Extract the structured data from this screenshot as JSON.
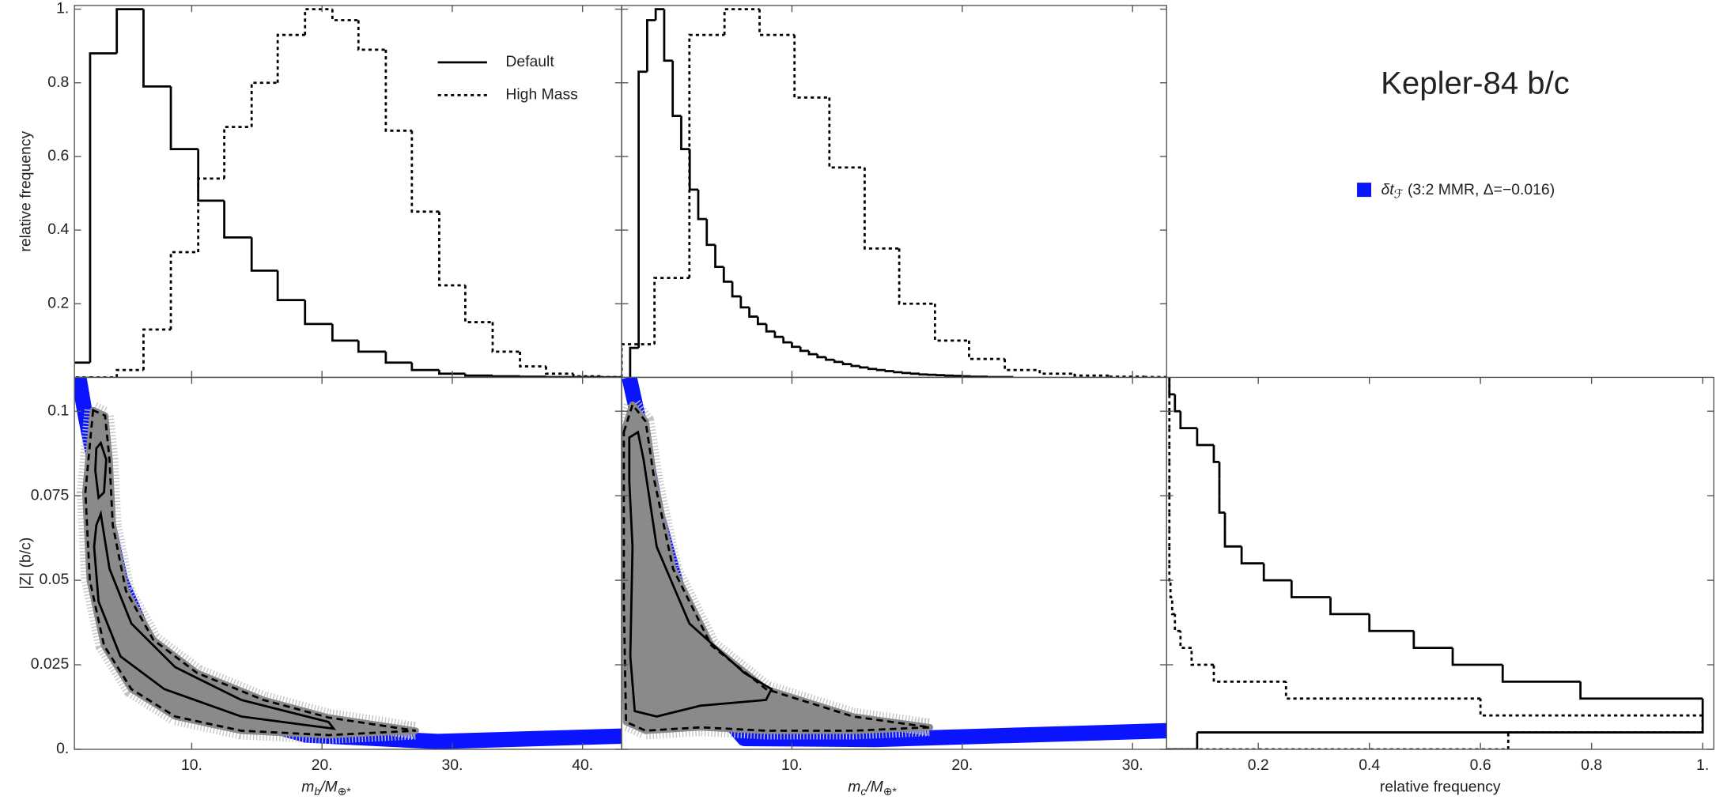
{
  "title": "Kepler-84 b/c",
  "chart_data": [
    {
      "type": "histogram",
      "orientation": "vertical",
      "xlim": [
        1,
        43
      ],
      "ylim": [
        0,
        1.01
      ],
      "yticks": [
        0.2,
        0.4,
        0.6,
        0.8,
        {
          "value": 1,
          "label": "1."
        }
      ],
      "y_label": "relative frequency",
      "legend": "upper right",
      "series": [
        {
          "name": "Default",
          "color": "#000000",
          "style": "solid",
          "bins": [
            0.1,
            2.2,
            4.25,
            6.3,
            8.4,
            10.5,
            12.5,
            14.6,
            16.6,
            18.7,
            20.8,
            22.8,
            24.9,
            26.9,
            29,
            31,
            33.1,
            35.2,
            37.2,
            39.3,
            41.4,
            43.4
          ],
          "values": [
            0.04,
            0.88,
            1.0,
            0.79,
            0.62,
            0.48,
            0.38,
            0.29,
            0.21,
            0.145,
            0.1,
            0.07,
            0.04,
            0.02,
            0.01,
            0.005,
            0.003,
            0.002,
            0.001,
            0.001,
            0.0005
          ]
        },
        {
          "name": "High Mass",
          "color": "#000000",
          "style": "dotted",
          "bins": [
            0.1,
            2.2,
            4.25,
            6.3,
            8.4,
            10.5,
            12.5,
            14.6,
            16.6,
            18.7,
            20.8,
            22.8,
            24.9,
            26.9,
            29,
            31,
            33.1,
            35.2,
            37.2,
            39.3,
            41.4,
            43.4
          ],
          "values": [
            0,
            0,
            0.02,
            0.13,
            0.34,
            0.54,
            0.68,
            0.8,
            0.93,
            1.0,
            0.97,
            0.89,
            0.67,
            0.45,
            0.25,
            0.15,
            0.07,
            0.03,
            0.01,
            0.003,
            0.001
          ]
        }
      ]
    },
    {
      "type": "histogram",
      "orientation": "vertical",
      "xlim": [
        0,
        32
      ],
      "ylim": [
        0,
        1.01
      ],
      "series": [
        {
          "color": "#000000",
          "style": "solid",
          "bins": [
            0.5,
            1,
            1.5,
            2,
            2.5,
            3,
            3.5,
            4,
            4.5,
            5,
            5.5,
            6,
            6.5,
            7,
            7.5,
            8,
            8.5,
            9,
            9.5,
            10,
            10.5,
            11,
            11.5,
            12,
            12.5,
            13,
            13.5,
            14,
            14.5,
            15,
            15.5,
            16,
            16.5,
            17,
            17.5,
            18,
            18.5,
            19,
            19.5,
            20,
            20.5,
            21,
            21.5,
            22,
            22.5,
            23
          ],
          "values": [
            0.08,
            0.83,
            0.97,
            1.0,
            0.86,
            0.71,
            0.62,
            0.51,
            0.43,
            0.36,
            0.3,
            0.26,
            0.22,
            0.19,
            0.165,
            0.145,
            0.125,
            0.11,
            0.095,
            0.083,
            0.072,
            0.063,
            0.055,
            0.048,
            0.042,
            0.036,
            0.031,
            0.027,
            0.023,
            0.02,
            0.017,
            0.014,
            0.012,
            0.01,
            0.008,
            0.007,
            0.006,
            0.005,
            0.004,
            0.003,
            0.002,
            0.002,
            0.001,
            0.001,
            0.001
          ]
        },
        {
          "color": "#000000",
          "style": "dotted",
          "bins": [
            0,
            1.93,
            3.98,
            6.04,
            8.1,
            10.15,
            12.2,
            14.27,
            16.3,
            18.4,
            20.4,
            22.5,
            24.55,
            26.6,
            28.7,
            30.7,
            32
          ],
          "values": [
            0.09,
            0.27,
            0.93,
            1.0,
            0.93,
            0.76,
            0.57,
            0.35,
            0.2,
            0.1,
            0.05,
            0.02,
            0.01,
            0.005,
            0.002,
            0.001
          ]
        }
      ]
    },
    {
      "type": "contour",
      "xlim": [
        1,
        43
      ],
      "ylim": [
        0,
        0.11
      ],
      "xticks": [
        {
          "value": 10,
          "label": "10."
        },
        {
          "value": 20,
          "label": "20."
        },
        {
          "value": 30,
          "label": "30."
        },
        {
          "value": 40,
          "label": "40."
        }
      ],
      "yticks": [
        {
          "value": 0,
          "label": "0."
        },
        0.025,
        0.05,
        0.075,
        0.1
      ],
      "x_label": [
        "m",
        "b",
        "/M",
        "⊕*"
      ],
      "y_label": "|Z| (b/c)",
      "series": [
        {
          "kind": "band",
          "name": [
            "δt",
            "ℱ",
            " (3:2 MMR, Δ=−0.016)"
          ],
          "color": "#0a14ff",
          "x": [
            1.34,
            1.84,
            2.85,
            4.53,
            7.05,
            12.1,
            18.8,
            28.9,
            43
          ],
          "y": [
            0.11,
            0.0987,
            0.0793,
            0.0501,
            0.0275,
            0.0113,
            0.0042,
            0.0023,
            0.0039
          ]
        },
        {
          "kind": "outer",
          "color": "#000000",
          "fill": "#8a8a8a",
          "style": "dashed",
          "x": [
            2.43,
            1.84,
            2.18,
            3.27,
            5.37,
            8.73,
            13.8,
            20.5,
            27.2,
            20.5,
            15.5,
            10.4,
            7.05,
            4.95,
            3.94,
            3.69,
            3.35
          ],
          "y": [
            0.1003,
            0.076,
            0.05,
            0.0307,
            0.0178,
            0.0097,
            0.0055,
            0.0042,
            0.0055,
            0.0094,
            0.0146,
            0.0226,
            0.0324,
            0.0469,
            0.0663,
            0.0857,
            0.0987
          ]
        },
        {
          "kind": "inner",
          "color": "#000000",
          "style": "solid",
          "x": [
            2.68,
            3.02,
            3.44,
            3.27,
            2.85,
            2.6
          ],
          "y": [
            0.089,
            0.0906,
            0.0857,
            0.076,
            0.0744,
            0.0825
          ]
        },
        {
          "kind": "inner",
          "color": "#000000",
          "style": "solid",
          "x": [
            2.68,
            3.02,
            3.69,
            5.37,
            8.73,
            13.8,
            20.5,
            20.9,
            13.8,
            7.9,
            4.53,
            2.85,
            2.51
          ],
          "y": [
            0.0663,
            0.0696,
            0.0534,
            0.0372,
            0.0243,
            0.0146,
            0.0081,
            0.0061,
            0.0097,
            0.0178,
            0.0275,
            0.0437,
            0.0599
          ]
        }
      ]
    },
    {
      "type": "contour",
      "xlim": [
        0,
        32
      ],
      "ylim": [
        0,
        0.11
      ],
      "xticks": [
        {
          "value": 10,
          "label": "10."
        },
        {
          "value": 20,
          "label": "20."
        },
        {
          "value": 30,
          "label": "30."
        }
      ],
      "x_label": [
        "m",
        "c",
        "/M",
        "⊕*"
      ],
      "series": [
        {
          "kind": "band",
          "color": "#0a14ff",
          "x": [
            0.45,
            1.09,
            2.06,
            3.66,
            5.27,
            7.2,
            14.9,
            32
          ],
          "y": [
            0.11,
            0.0954,
            0.0696,
            0.0404,
            0.0146,
            0.0032,
            0.0029,
            0.0055
          ]
        },
        {
          "kind": "outer",
          "color": "#000000",
          "fill": "#8a8a8a",
          "style": "dashed",
          "x": [
            0.13,
            0.64,
            1.41,
            1.93,
            3.02,
            5.27,
            8.48,
            13.6,
            18.1,
            13.6,
            8.48,
            4.63,
            1.41,
            0.26,
            0.13
          ],
          "y": [
            0.0938,
            0.1019,
            0.097,
            0.0793,
            0.0534,
            0.0307,
            0.0178,
            0.0097,
            0.0065,
            0.0055,
            0.0055,
            0.0065,
            0.0055,
            0.0081,
            0.0437
          ]
        },
        {
          "kind": "inner",
          "color": "#000000",
          "style": "solid",
          "x": [
            0.45,
            0.96,
            1.29,
            2.06,
            3.98,
            7.2,
            8.8,
            8.48,
            4.63,
            2.06,
            0.77,
            0.51,
            0.64,
            0.45
          ],
          "y": [
            0.0922,
            0.0938,
            0.0857,
            0.0599,
            0.0372,
            0.0226,
            0.0178,
            0.0146,
            0.0129,
            0.0097,
            0.0113,
            0.0275,
            0.0599,
            0.0793
          ]
        }
      ]
    },
    {
      "type": "histogram",
      "orientation": "horizontal",
      "xlim": [
        0.035,
        1.02
      ],
      "ylim": [
        0,
        0.11
      ],
      "xticks": [
        0.2,
        0.4,
        0.6,
        0.8,
        {
          "value": 1,
          "label": "1."
        }
      ],
      "x_label": "relative frequency",
      "series": [
        {
          "color": "#000000",
          "style": "solid",
          "bins": [
            0,
            0.005,
            0.01,
            0.015,
            0.02,
            0.025,
            0.03,
            0.035,
            0.04,
            0.045,
            0.05,
            0.055,
            0.06,
            0.065,
            0.07,
            0.075,
            0.08,
            0.085,
            0.09,
            0.095,
            0.1,
            0.105,
            0.11
          ],
          "values": [
            0.09,
            1.0,
            1.0,
            0.78,
            0.64,
            0.55,
            0.48,
            0.4,
            0.33,
            0.26,
            0.21,
            0.17,
            0.14,
            0.14,
            0.13,
            0.13,
            0.13,
            0.12,
            0.09,
            0.06,
            0.05,
            0.04
          ]
        },
        {
          "color": "#000000",
          "style": "dotted",
          "bins": [
            0,
            0.005,
            0.01,
            0.015,
            0.02,
            0.025,
            0.03,
            0.035,
            0.04,
            0.045,
            0.05,
            0.055,
            0.06,
            0.065,
            0.07,
            0.075,
            0.08,
            0.085,
            0.09,
            0.095,
            0.1,
            0.105,
            0.11
          ],
          "values": [
            0.65,
            1.0,
            0.6,
            0.25,
            0.12,
            0.08,
            0.06,
            0.05,
            0.045,
            0.042,
            0.04,
            0.04,
            0.04,
            0.04,
            0.04,
            0.04,
            0.04,
            0.04,
            0.04,
            0.04,
            0.04,
            0.04
          ]
        }
      ]
    }
  ]
}
